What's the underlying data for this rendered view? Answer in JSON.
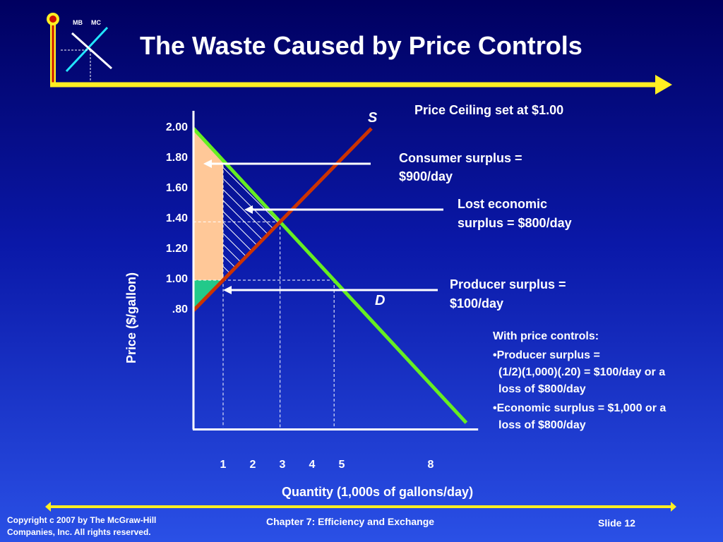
{
  "slide": {
    "title": "The Waste Caused by Price Controls",
    "logo": {
      "mb": "MB",
      "mc": "MC"
    }
  },
  "annotations": {
    "ceiling": "Price Ceiling set at $1.00",
    "consumer_line1": "Consumer surplus =",
    "consumer_line2": "$900/day",
    "lost_line1": "Lost economic",
    "lost_line2": "surplus  = $800/day",
    "producer_line1": "Producer surplus =",
    "producer_line2": "$100/day",
    "notes_heading": "With price controls:",
    "note1_line1": "•Producer surplus =",
    "note1_line2": "(1/2)(1,000)(.20) = $100/day or a",
    "note1_line3": "loss of $800/day",
    "note2_line1": "•Economic surplus = $1,000 or a",
    "note2_line2": "loss of $800/day"
  },
  "chart_data": {
    "type": "line",
    "ylabel": "Price ($/gallon)",
    "xlabel": "Quantity (1,000s of gallons/day)",
    "y_ticks": [
      "2.00",
      "1.80",
      "1.60",
      "1.40",
      "1.20",
      "1.00",
      ".80"
    ],
    "x_ticks": [
      "1",
      "2",
      "3",
      "4",
      "5",
      "8"
    ],
    "series": [
      {
        "name": "S",
        "x": [
          0,
          6
        ],
        "y": [
          0.8,
          2.0
        ],
        "color": "#cc3300"
      },
      {
        "name": "D",
        "x": [
          0,
          9.2
        ],
        "y": [
          2.0,
          0.06
        ],
        "color": "#66ee22"
      }
    ],
    "price_ceiling": 1.0,
    "consumer_surplus_color": "#ffc898",
    "producer_surplus_color": "#22c98a",
    "lost_surplus_fill": "hatched-white",
    "colors": {
      "axis": "#ffffff",
      "arrow_line": "#ffffff",
      "rail": "#ffee22",
      "rail_red": "#cc1100"
    }
  },
  "footer": {
    "copyright_line1": "Copyright c 2007 by The McGraw-Hill",
    "copyright_line2": "Companies, Inc.  All rights reserved.",
    "chapter": "Chapter 7: Efficiency and Exchange",
    "slide_number": "Slide 12"
  }
}
